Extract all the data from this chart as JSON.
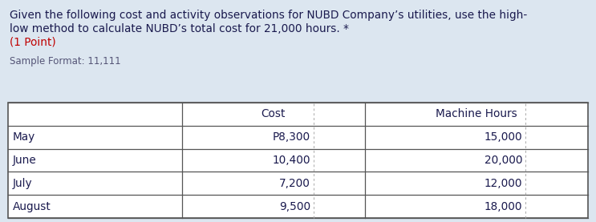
{
  "title_line1": "Given the following cost and activity observations for NUBD Company’s utilities, use the high-",
  "title_line2": "low method to calculate NUBD’s total cost for 21,000 hours. *",
  "title_line3": "(1 Point)",
  "sample_format": "Sample Format: 11,111",
  "col_headers": [
    "",
    "Cost",
    "Machine Hours"
  ],
  "rows": [
    [
      "May",
      "P8,300",
      "15,000"
    ],
    [
      "June",
      "10,400",
      "20,000"
    ],
    [
      "July",
      "7,200",
      "12,000"
    ],
    [
      "August",
      "9,500",
      "18,000"
    ]
  ],
  "bg_color": "#dce6f0",
  "table_bg": "#ffffff",
  "title_color": "#1a1a4e",
  "point_color": "#c00000",
  "sample_color": "#555577",
  "cell_text_color": "#1a1a4e",
  "font_size_title": 9.8,
  "font_size_table": 9.8,
  "font_size_sample": 8.5,
  "table_line_color": "#555555",
  "table_dashed_color": "#aaaaaa",
  "figwidth": 7.43,
  "figheight": 2.77,
  "dpi": 100
}
